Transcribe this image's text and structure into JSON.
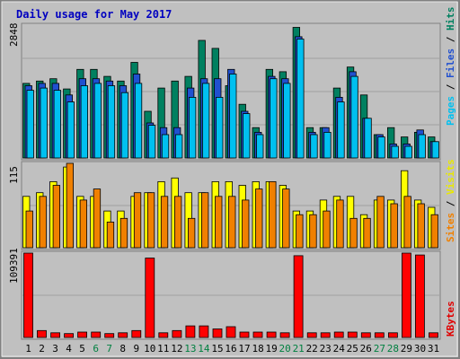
{
  "chart_data": {
    "type": "bar",
    "title": "Daily usage for May 2017",
    "categories": [
      "1",
      "2",
      "3",
      "4",
      "5",
      "6",
      "7",
      "8",
      "9",
      "10",
      "11",
      "12",
      "13",
      "14",
      "15",
      "16",
      "17",
      "18",
      "19",
      "20",
      "21",
      "22",
      "23",
      "24",
      "25",
      "26",
      "27",
      "28",
      "29",
      "30",
      "31"
    ],
    "weekend_days": [
      "6",
      "7",
      "13",
      "14",
      "20",
      "21",
      "27",
      "28"
    ],
    "panels": [
      {
        "id": "hits",
        "max_label": "2848",
        "ylim": [
          0,
          2848
        ],
        "side_labels": [
          {
            "text": "Pages",
            "color": "#00c0f0"
          },
          {
            "text": " / ",
            "color": "#000000"
          },
          {
            "text": "Files",
            "color": "#2050d0"
          },
          {
            "text": " / ",
            "color": "#000000"
          },
          {
            "text": "Hits",
            "color": "#008060"
          }
        ],
        "series": [
          {
            "name": "Hits",
            "color": "#008060",
            "values": [
              1600,
              1650,
              1700,
              1480,
              1900,
              1900,
              1750,
              1650,
              2050,
              1000,
              1500,
              1650,
              1750,
              2520,
              2350,
              1550,
              1150,
              650,
              1900,
              1850,
              2800,
              650,
              650,
              1500,
              1950,
              1350,
              500,
              650,
              450,
              550,
              450
            ]
          },
          {
            "name": "Files",
            "color": "#2050d0",
            "values": [
              1550,
              1600,
              1600,
              1350,
              1700,
              1700,
              1650,
              1550,
              1800,
              750,
              650,
              650,
              1500,
              1700,
              1700,
              1900,
              1000,
              550,
              1750,
              1700,
              2600,
              550,
              650,
              1300,
              1850,
              850,
              500,
              300,
              300,
              600,
              350
            ]
          },
          {
            "name": "Pages",
            "color": "#00c0f0",
            "values": [
              1450,
              1500,
              1450,
              1200,
              1550,
              1600,
              1550,
              1400,
              1600,
              700,
              500,
              500,
              1300,
              1600,
              1300,
              1800,
              950,
              500,
              1700,
              1600,
              2550,
              500,
              550,
              1200,
              1750,
              850,
              450,
              250,
              250,
              500,
              350
            ]
          }
        ]
      },
      {
        "id": "visits",
        "max_label": "115",
        "ylim": [
          0,
          115
        ],
        "side_labels": [
          {
            "text": "Sites",
            "color": "#f08000"
          },
          {
            "text": " / ",
            "color": "#000000"
          },
          {
            "text": "Visits",
            "color": "#e8e800"
          }
        ],
        "series": [
          {
            "name": "Visits",
            "color": "#ffff00",
            "values": [
              70,
              75,
              90,
              110,
              70,
              70,
              50,
              50,
              70,
              75,
              90,
              95,
              75,
              75,
              90,
              90,
              85,
              90,
              90,
              85,
              50,
              50,
              65,
              70,
              70,
              45,
              65,
              65,
              105,
              65,
              55
            ]
          },
          {
            "name": "Sites",
            "color": "#f08000",
            "values": [
              50,
              70,
              85,
              115,
              65,
              80,
              35,
              40,
              75,
              75,
              70,
              70,
              40,
              75,
              70,
              70,
              65,
              80,
              90,
              80,
              45,
              45,
              50,
              65,
              40,
              40,
              70,
              60,
              70,
              60,
              45
            ]
          }
        ]
      },
      {
        "id": "kbytes",
        "max_label": "109391",
        "ylim": [
          0,
          109391
        ],
        "side_labels": [
          {
            "text": "KBytes",
            "color": "#e00000"
          }
        ],
        "series": [
          {
            "name": "KBytes",
            "color": "#ff0000",
            "values": [
              109391,
              9000,
              6000,
              5000,
              7000,
              7000,
              5000,
              6000,
              9000,
              103000,
              6000,
              9000,
              15000,
              15000,
              11000,
              14000,
              7000,
              7000,
              7000,
              6000,
              106000,
              6000,
              6000,
              7000,
              7000,
              6000,
              6000,
              6000,
              109391,
              107000,
              6000
            ]
          }
        ]
      }
    ]
  },
  "colors": {
    "title": "#0000c0",
    "weekday_label": "#000000",
    "weekend_label": "#008040",
    "plot_bg": "#c0c0c0",
    "frame": "#808080",
    "grid": "#a0a0a0",
    "outline": "#000000"
  }
}
